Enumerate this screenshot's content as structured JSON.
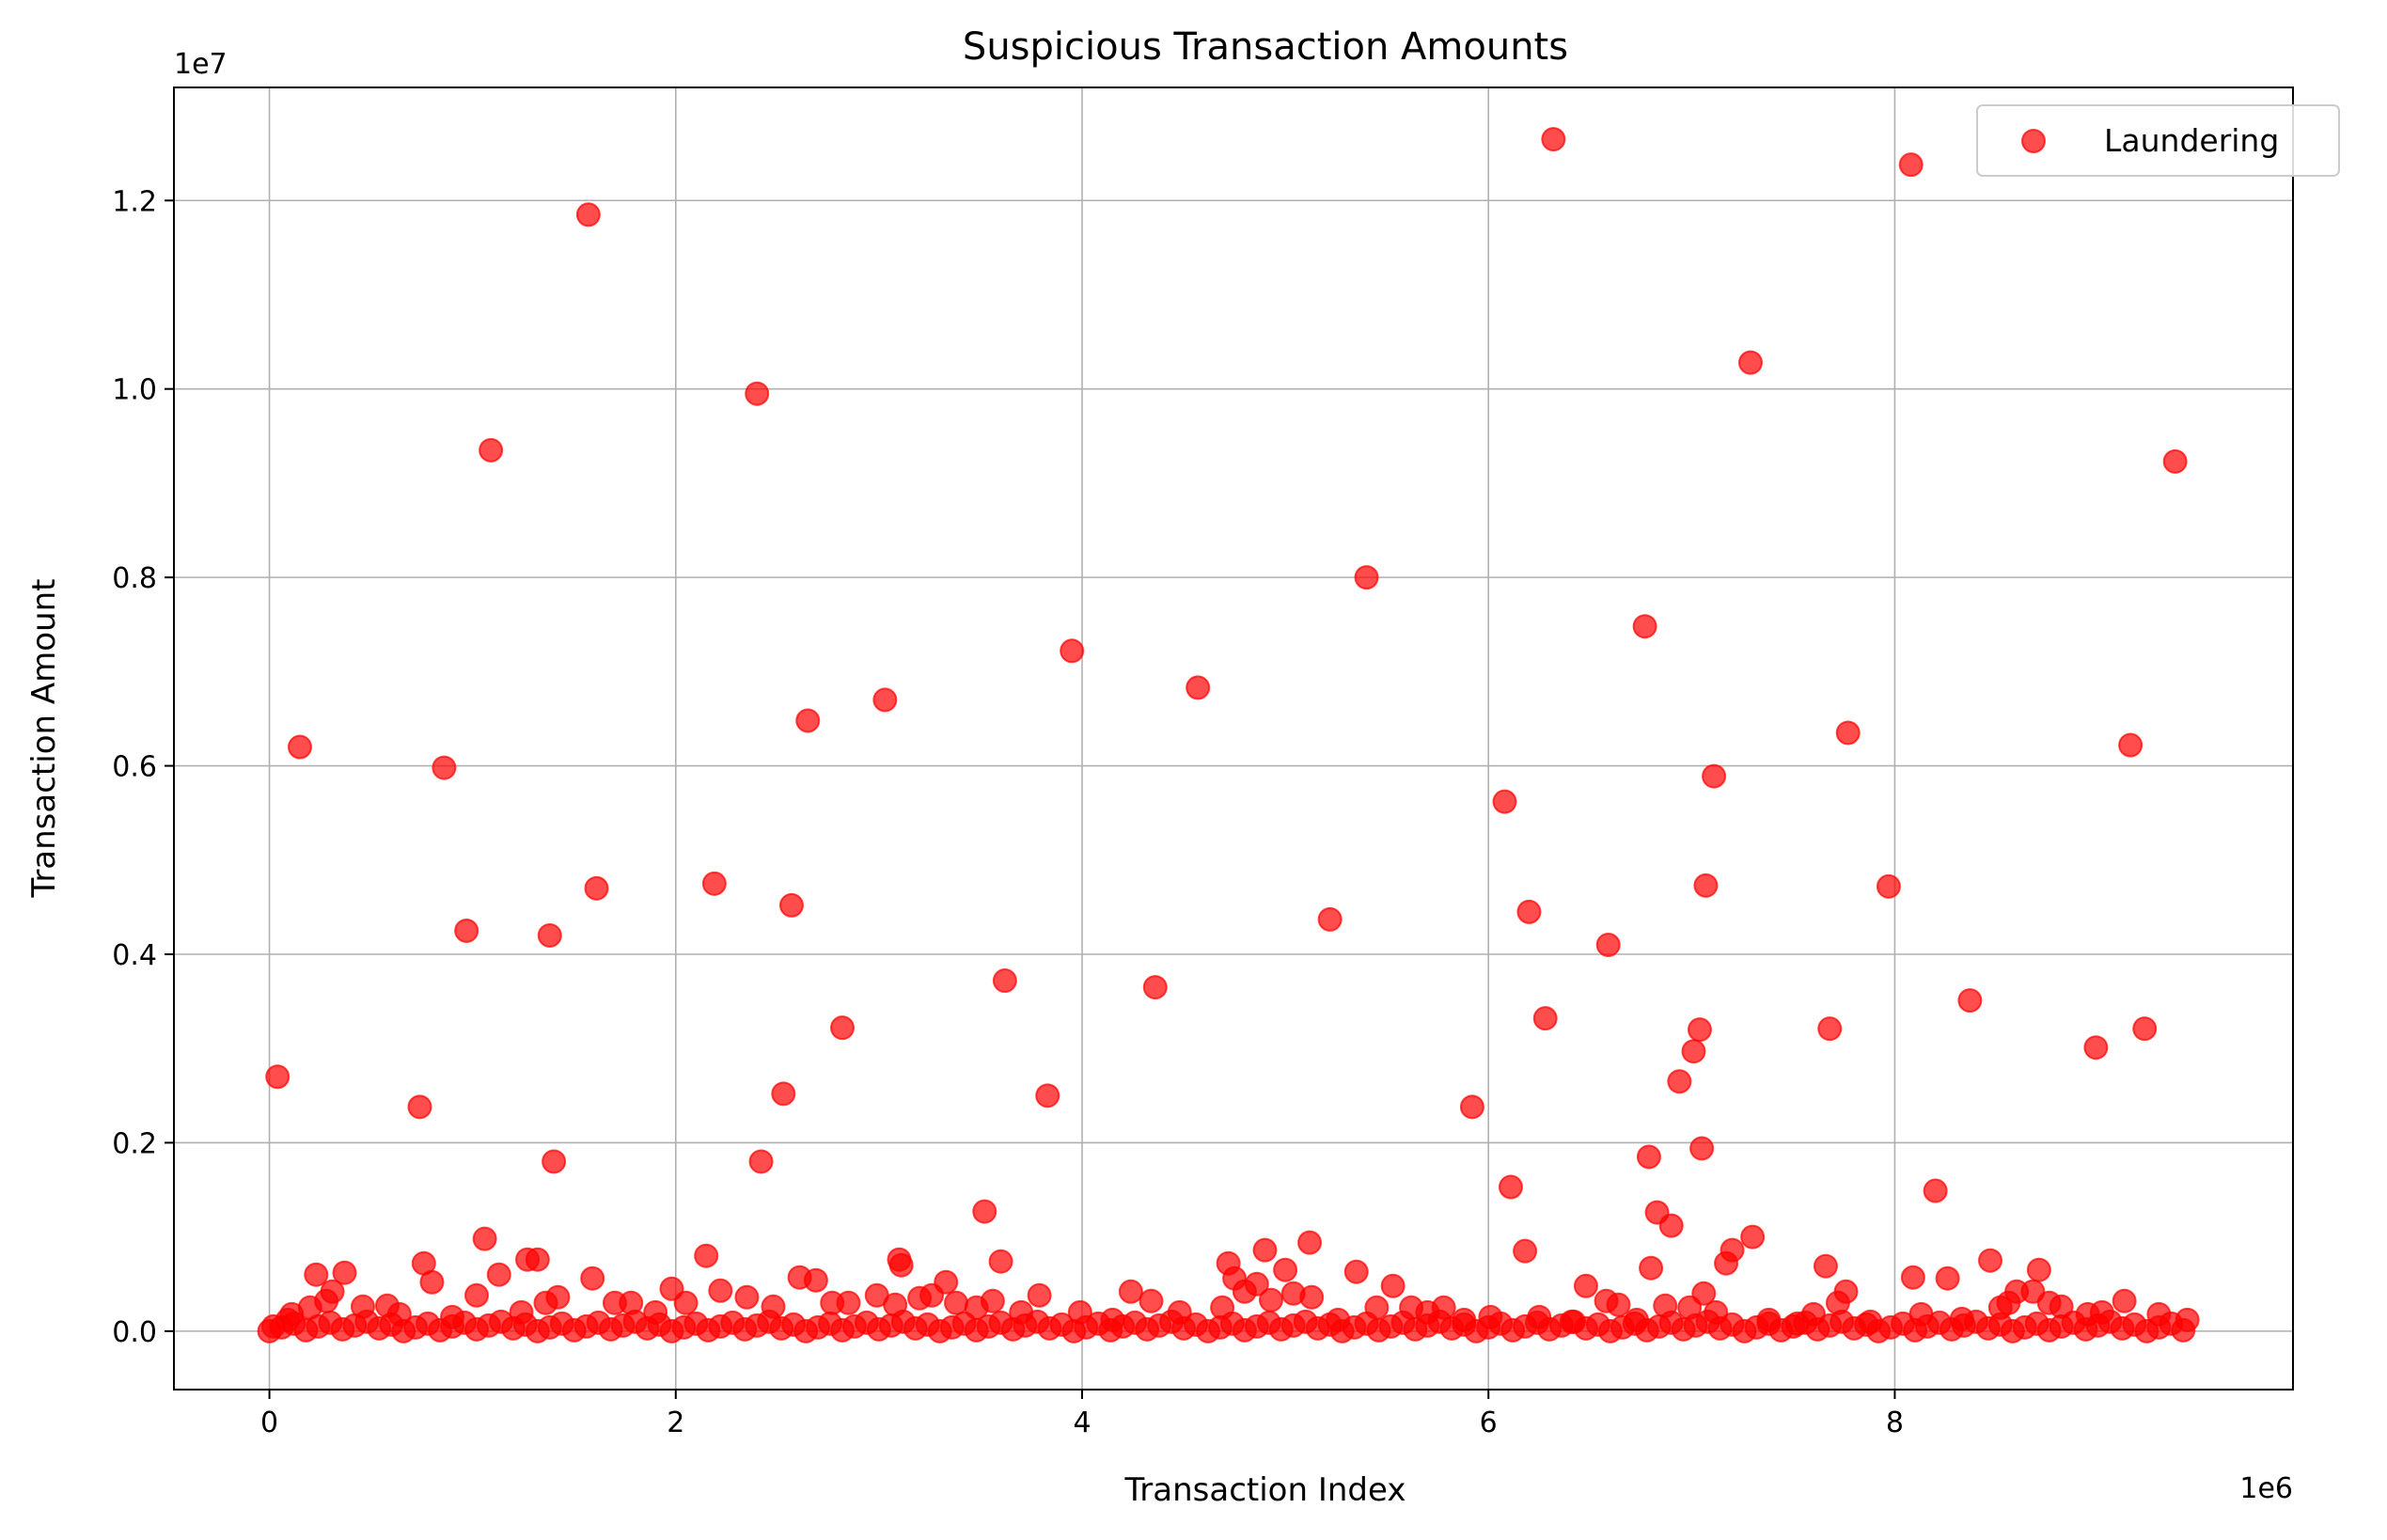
{
  "chart_data": {
    "type": "scatter",
    "title": "Suspicious Transaction Amounts",
    "xlabel": "Transaction Index",
    "ylabel": "Transaction Amount",
    "x_offset_text": "1e6",
    "y_offset_text": "1e7",
    "x_scale": 1000000,
    "y_scale": 10000000,
    "xlim": [
      -470000,
      9960000
    ],
    "ylim": [
      -620000,
      13200000
    ],
    "x_ticks": [
      0,
      2000000,
      4000000,
      6000000,
      8000000
    ],
    "x_tick_labels": [
      "0",
      "2",
      "4",
      "6",
      "8"
    ],
    "y_ticks": [
      0,
      2000000,
      4000000,
      6000000,
      8000000,
      10000000,
      12000000
    ],
    "y_tick_labels": [
      "0.0",
      "0.2",
      "0.4",
      "0.6",
      "0.8",
      "1.0",
      "1.2"
    ],
    "grid": true,
    "legend_position": "top-right",
    "series": [
      {
        "name": "Laundering",
        "color": "#ff0000",
        "opacity": 0.7,
        "points": [
          [
            40000,
            2700000
          ],
          [
            150000,
            6200000
          ],
          [
            230000,
            600000
          ],
          [
            370000,
            620000
          ],
          [
            740000,
            2380000
          ],
          [
            760000,
            720000
          ],
          [
            800000,
            520000
          ],
          [
            860000,
            5980000
          ],
          [
            970000,
            4250000
          ],
          [
            1060000,
            980000
          ],
          [
            1090000,
            9350000
          ],
          [
            1130000,
            600000
          ],
          [
            1270000,
            760000
          ],
          [
            1320000,
            760000
          ],
          [
            1380000,
            4200000
          ],
          [
            1400000,
            1800000
          ],
          [
            1570000,
            11850000
          ],
          [
            1590000,
            560000
          ],
          [
            1610000,
            4700000
          ],
          [
            1980000,
            450000
          ],
          [
            2150000,
            800000
          ],
          [
            2190000,
            4750000
          ],
          [
            2220000,
            430000
          ],
          [
            2400000,
            9950000
          ],
          [
            2420000,
            1800000
          ],
          [
            2530000,
            2520000
          ],
          [
            2570000,
            4520000
          ],
          [
            2610000,
            570000
          ],
          [
            2650000,
            6480000
          ],
          [
            2690000,
            540000
          ],
          [
            2820000,
            3220000
          ],
          [
            3030000,
            6700000
          ],
          [
            3100000,
            760000
          ],
          [
            3110000,
            700000
          ],
          [
            3330000,
            520000
          ],
          [
            3520000,
            1270000
          ],
          [
            3600000,
            740000
          ],
          [
            3620000,
            3720000
          ],
          [
            3830000,
            2500000
          ],
          [
            3950000,
            7220000
          ],
          [
            4240000,
            420000
          ],
          [
            4360000,
            3650000
          ],
          [
            4570000,
            6830000
          ],
          [
            4720000,
            720000
          ],
          [
            4900000,
            860000
          ],
          [
            5000000,
            650000
          ],
          [
            5120000,
            940000
          ],
          [
            5220000,
            4370000
          ],
          [
            5350000,
            630000
          ],
          [
            5400000,
            8000000
          ],
          [
            5530000,
            480000
          ],
          [
            5920000,
            2380000
          ],
          [
            6080000,
            5620000
          ],
          [
            6110000,
            1530000
          ],
          [
            6180000,
            850000
          ],
          [
            6200000,
            4450000
          ],
          [
            6280000,
            3320000
          ],
          [
            6320000,
            12650000
          ],
          [
            6480000,
            480000
          ],
          [
            6590000,
            4100000
          ],
          [
            6770000,
            7480000
          ],
          [
            6790000,
            1850000
          ],
          [
            6800000,
            670000
          ],
          [
            6830000,
            1260000
          ],
          [
            6900000,
            1120000
          ],
          [
            6940000,
            2650000
          ],
          [
            7010000,
            2970000
          ],
          [
            7040000,
            3200000
          ],
          [
            7050000,
            1940000
          ],
          [
            7070000,
            4730000
          ],
          [
            7110000,
            5890000
          ],
          [
            7170000,
            720000
          ],
          [
            7200000,
            860000
          ],
          [
            7290000,
            10280000
          ],
          [
            7300000,
            1000000
          ],
          [
            7660000,
            690000
          ],
          [
            7680000,
            3210000
          ],
          [
            7770000,
            6350000
          ],
          [
            7970000,
            4720000
          ],
          [
            8080000,
            12380000
          ],
          [
            8090000,
            570000
          ],
          [
            8200000,
            1490000
          ],
          [
            8260000,
            560000
          ],
          [
            8370000,
            3510000
          ],
          [
            8470000,
            750000
          ],
          [
            8600000,
            420000
          ],
          [
            8710000,
            650000
          ],
          [
            8990000,
            3010000
          ],
          [
            9160000,
            6220000
          ],
          [
            9230000,
            3210000
          ],
          [
            9380000,
            9230000
          ]
        ],
        "base_points": [
          [
            20000,
            50000
          ],
          [
            90000,
            120000
          ],
          [
            110000,
            180000
          ],
          [
            200000,
            250000
          ],
          [
            280000,
            320000
          ],
          [
            310000,
            420000
          ],
          [
            460000,
            260000
          ],
          [
            580000,
            270000
          ],
          [
            640000,
            180000
          ],
          [
            900000,
            150000
          ],
          [
            1020000,
            380000
          ],
          [
            1240000,
            200000
          ],
          [
            1360000,
            300000
          ],
          [
            1420000,
            360000
          ],
          [
            1700000,
            300000
          ],
          [
            1780000,
            300000
          ],
          [
            1900000,
            200000
          ],
          [
            2050000,
            300000
          ],
          [
            2350000,
            360000
          ],
          [
            2480000,
            260000
          ],
          [
            2770000,
            300000
          ],
          [
            2850000,
            300000
          ],
          [
            2990000,
            380000
          ],
          [
            3080000,
            280000
          ],
          [
            3200000,
            350000
          ],
          [
            3260000,
            380000
          ],
          [
            3380000,
            300000
          ],
          [
            3480000,
            250000
          ],
          [
            3560000,
            320000
          ],
          [
            3700000,
            200000
          ],
          [
            3790000,
            380000
          ],
          [
            3990000,
            200000
          ],
          [
            4150000,
            120000
          ],
          [
            4340000,
            320000
          ],
          [
            4480000,
            200000
          ],
          [
            4690000,
            250000
          ],
          [
            4750000,
            560000
          ],
          [
            4800000,
            420000
          ],
          [
            4860000,
            500000
          ],
          [
            4930000,
            330000
          ],
          [
            5040000,
            400000
          ],
          [
            5130000,
            360000
          ],
          [
            5260000,
            120000
          ],
          [
            5450000,
            250000
          ],
          [
            5620000,
            250000
          ],
          [
            5700000,
            200000
          ],
          [
            5780000,
            250000
          ],
          [
            5880000,
            120000
          ],
          [
            6010000,
            150000
          ],
          [
            6250000,
            150000
          ],
          [
            6410000,
            100000
          ],
          [
            6580000,
            320000
          ],
          [
            6640000,
            280000
          ],
          [
            6730000,
            120000
          ],
          [
            6870000,
            270000
          ],
          [
            6990000,
            250000
          ],
          [
            7060000,
            400000
          ],
          [
            7120000,
            200000
          ],
          [
            7380000,
            120000
          ],
          [
            7520000,
            80000
          ],
          [
            7600000,
            180000
          ],
          [
            7720000,
            300000
          ],
          [
            7760000,
            420000
          ],
          [
            7880000,
            100000
          ],
          [
            8130000,
            180000
          ],
          [
            8330000,
            130000
          ],
          [
            8520000,
            250000
          ],
          [
            8560000,
            300000
          ],
          [
            8680000,
            420000
          ],
          [
            8760000,
            300000
          ],
          [
            8820000,
            260000
          ],
          [
            8950000,
            180000
          ],
          [
            9020000,
            200000
          ],
          [
            9130000,
            320000
          ],
          [
            9300000,
            180000
          ],
          [
            9440000,
            120000
          ]
        ],
        "dense_band": {
          "x_start": 0,
          "x_end": 9450000,
          "step": 60000,
          "y_max": 100000
        }
      }
    ]
  }
}
